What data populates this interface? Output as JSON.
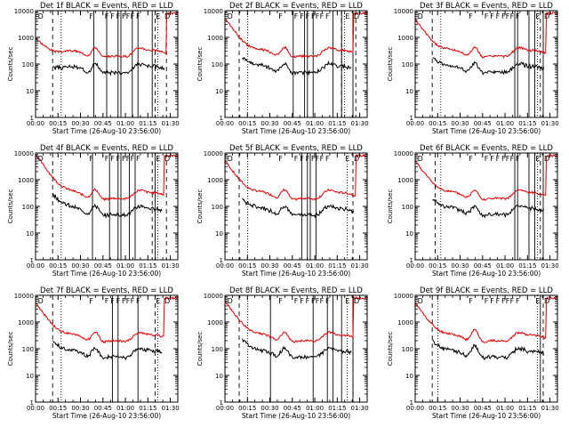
{
  "style": {
    "events_color": "#000000",
    "lld_color": "#e00000",
    "axis_color": "#000000",
    "background": "#ffffff"
  },
  "chart_data": [
    {
      "type": "line",
      "title": "Det 1f BLACK = Events, RED = LLD",
      "ylabel": "Counts/sec",
      "xlabel": "Start Time (26-Aug-10 23:56:00)",
      "x_ticks": [
        "00:00",
        "00:15",
        "00:30",
        "00:45",
        "01:00",
        "01:15",
        "01:30"
      ],
      "y_ticks": [
        "1",
        "10",
        "100",
        "1000",
        "10000"
      ],
      "yscale": "log",
      "xlim_minutes": [
        0,
        95
      ],
      "ylim": [
        1,
        10000
      ],
      "markers": [
        "D",
        "F",
        "F",
        "F",
        "F",
        "F",
        "F",
        "F",
        "F",
        "E",
        "D"
      ],
      "series": [
        {
          "name": "Events",
          "color": "#000000"
        },
        {
          "name": "LLD",
          "color": "#e00000"
        }
      ]
    },
    {
      "type": "line",
      "title": "Det 2f BLACK = Events, RED = LLD",
      "ylabel": "Counts/sec",
      "xlabel": "Start Time (26-Aug-10 23:56:00)",
      "x_ticks": [
        "00:00",
        "00:15",
        "00:30",
        "00:45",
        "01:00",
        "01:15",
        "01:30"
      ],
      "y_ticks": [
        "1",
        "10",
        "100",
        "1000",
        "10000"
      ],
      "yscale": "log",
      "xlim_minutes": [
        0,
        95
      ],
      "ylim": [
        1,
        10000
      ],
      "markers": [
        "D",
        "F",
        "F",
        "F",
        "F",
        "F",
        "F",
        "F",
        "F",
        "E",
        "D"
      ],
      "series": [
        {
          "name": "Events",
          "color": "#000000"
        },
        {
          "name": "LLD",
          "color": "#e00000"
        }
      ]
    },
    {
      "type": "line",
      "title": "Det 3f BLACK = Events, RED = LLD",
      "ylabel": "Counts/sec",
      "xlabel": "Start Time (26-Aug-10 23:56:00)",
      "x_ticks": [
        "00:00",
        "00:15",
        "00:30",
        "00:45",
        "01:00",
        "01:15",
        "01:30"
      ],
      "y_ticks": [
        "1",
        "10",
        "100",
        "1000",
        "10000"
      ],
      "yscale": "log",
      "xlim_minutes": [
        0,
        95
      ],
      "ylim": [
        1,
        10000
      ],
      "markers": [
        "D",
        "F",
        "F",
        "F",
        "F",
        "F",
        "F",
        "F",
        "F",
        "E",
        "D"
      ],
      "series": [
        {
          "name": "Events",
          "color": "#000000"
        },
        {
          "name": "LLD",
          "color": "#e00000"
        }
      ]
    },
    {
      "type": "line",
      "title": "Det 4f BLACK = Events, RED = LLD",
      "ylabel": "Counts/sec",
      "xlabel": "Start Time (26-Aug-10 23:56:00)",
      "x_ticks": [
        "00:00",
        "00:15",
        "00:30",
        "00:45",
        "01:00",
        "01:15",
        "01:30"
      ],
      "y_ticks": [
        "1",
        "10",
        "100",
        "1000",
        "10000"
      ],
      "yscale": "log",
      "xlim_minutes": [
        0,
        95
      ],
      "ylim": [
        1,
        10000
      ],
      "markers": [
        "D",
        "F",
        "F",
        "F",
        "F",
        "F",
        "F",
        "F",
        "F",
        "E",
        "D"
      ],
      "series": [
        {
          "name": "Events",
          "color": "#000000"
        },
        {
          "name": "LLD",
          "color": "#e00000"
        }
      ]
    },
    {
      "type": "line",
      "title": "Det 5f BLACK = Events, RED = LLD",
      "ylabel": "Counts/sec",
      "xlabel": "Start Time (26-Aug-10 23:56:00)",
      "x_ticks": [
        "00:00",
        "00:15",
        "00:30",
        "00:45",
        "01:00",
        "01:15",
        "01:30"
      ],
      "y_ticks": [
        "1",
        "10",
        "100",
        "1000",
        "10000"
      ],
      "yscale": "log",
      "xlim_minutes": [
        0,
        95
      ],
      "ylim": [
        1,
        10000
      ],
      "markers": [
        "D",
        "F",
        "F",
        "F",
        "F",
        "F",
        "F",
        "F",
        "F",
        "E",
        "D"
      ],
      "series": [
        {
          "name": "Events",
          "color": "#000000"
        },
        {
          "name": "LLD",
          "color": "#e00000"
        }
      ]
    },
    {
      "type": "line",
      "title": "Det 6f BLACK = Events, RED = LLD",
      "ylabel": "Counts/sec",
      "xlabel": "Start Time (26-Aug-10 23:56:00)",
      "x_ticks": [
        "00:00",
        "00:15",
        "00:30",
        "00:45",
        "01:00",
        "01:15",
        "01:30"
      ],
      "y_ticks": [
        "1",
        "10",
        "100",
        "1000",
        "10000"
      ],
      "yscale": "log",
      "xlim_minutes": [
        0,
        95
      ],
      "ylim": [
        1,
        10000
      ],
      "markers": [
        "D",
        "F",
        "F",
        "F",
        "F",
        "F",
        "F",
        "F",
        "F",
        "E",
        "D"
      ],
      "series": [
        {
          "name": "Events",
          "color": "#000000"
        },
        {
          "name": "LLD",
          "color": "#e00000"
        }
      ]
    },
    {
      "type": "line",
      "title": "Det 7f BLACK = Events, RED = LLD",
      "ylabel": "Counts/sec",
      "xlabel": "Start Time (26-Aug-10 23:56:00)",
      "x_ticks": [
        "00:00",
        "00:15",
        "00:30",
        "00:45",
        "01:00",
        "01:15",
        "01:30"
      ],
      "y_ticks": [
        "1",
        "10",
        "100",
        "1000",
        "10000"
      ],
      "yscale": "log",
      "xlim_minutes": [
        0,
        95
      ],
      "ylim": [
        1,
        10000
      ],
      "markers": [
        "D",
        "F",
        "F",
        "F",
        "F",
        "F",
        "F",
        "F",
        "F",
        "E",
        "D"
      ],
      "series": [
        {
          "name": "Events",
          "color": "#000000"
        },
        {
          "name": "LLD",
          "color": "#e00000"
        }
      ]
    },
    {
      "type": "line",
      "title": "Det 8f BLACK = Events, RED = LLD",
      "ylabel": "Counts/sec",
      "xlabel": "Start Time (26-Aug-10 23:56:00)",
      "x_ticks": [
        "00:00",
        "00:15",
        "00:30",
        "00:45",
        "01:00",
        "01:15",
        "01:30"
      ],
      "y_ticks": [
        "1",
        "10",
        "100",
        "1000",
        "10000"
      ],
      "yscale": "log",
      "xlim_minutes": [
        0,
        95
      ],
      "ylim": [
        1,
        10000
      ],
      "markers": [
        "D",
        "F",
        "F",
        "F",
        "F",
        "F",
        "F",
        "F",
        "F",
        "E",
        "D"
      ],
      "series": [
        {
          "name": "Events",
          "color": "#000000"
        },
        {
          "name": "LLD",
          "color": "#e00000"
        }
      ]
    },
    {
      "type": "line",
      "title": "Det 9f BLACK = Events, RED = LLD",
      "ylabel": "Counts/sec",
      "xlabel": "Start Time (26-Aug-10 23:56:00)",
      "x_ticks": [
        "00:00",
        "00:15",
        "00:30",
        "00:45",
        "01:00",
        "01:15",
        "01:30"
      ],
      "y_ticks": [
        "1",
        "10",
        "100",
        "1000",
        "10000"
      ],
      "yscale": "log",
      "xlim_minutes": [
        0,
        95
      ],
      "ylim": [
        1,
        10000
      ],
      "markers": [
        "D",
        "F",
        "F",
        "F",
        "F",
        "F",
        "F",
        "F",
        "F",
        "E",
        "D"
      ],
      "series": [
        {
          "name": "Events",
          "color": "#000000"
        },
        {
          "name": "LLD",
          "color": "#e00000"
        }
      ]
    }
  ]
}
